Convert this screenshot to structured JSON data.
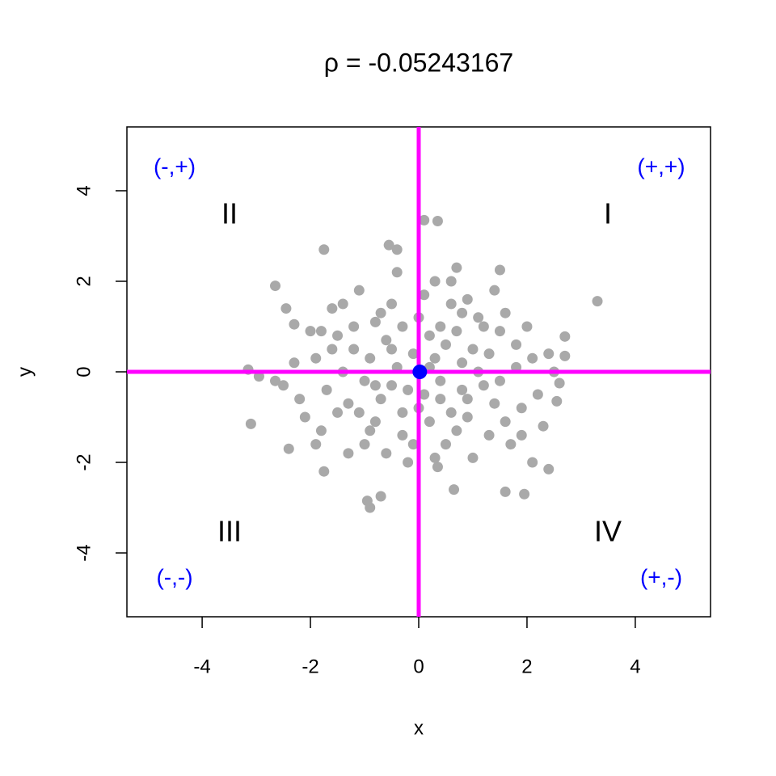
{
  "chart_data": {
    "type": "scatter",
    "title": "ρ = -0.05243167",
    "x_label": "x",
    "y_label": "y",
    "xlim": [
      -5.39,
      5.39
    ],
    "ylim": [
      -5.41,
      5.41
    ],
    "xticks": [
      -4,
      -2,
      0,
      2,
      4
    ],
    "yticks": [
      -4,
      -2,
      0,
      2,
      4
    ],
    "series": [
      {
        "color": "#a9a9a9",
        "x": [
          3.3,
          -3.1,
          -2.65,
          0.1,
          0.35,
          -1.75,
          -0.9,
          -0.95,
          -0.7,
          1.95,
          1.6,
          2.4,
          2.1,
          2.7,
          2.7,
          -3.15,
          -2.95,
          -2.65,
          -2.4,
          -1.75,
          0.65,
          0.35,
          -0.55,
          0.7,
          1.5,
          -0.4,
          -2.45,
          -2.3,
          2.55,
          2.6,
          -1.2,
          -0.8,
          -0.5,
          0.2,
          0.9,
          1.3,
          -1.5,
          0.6,
          -0.3,
          1.8,
          -1.9,
          0.4,
          -0.1,
          1.1,
          -1.0,
          0.7,
          1.6,
          -1.6,
          0.0,
          -0.6,
          2.1,
          2.2,
          -2.2,
          -2.0,
          0.3,
          -0.2,
          1.0,
          -1.3,
          1.4,
          -1.1,
          0.8,
          -0.7,
          0.5,
          -0.4,
          1.2,
          -1.4,
          0.1,
          1.9,
          -1.8,
          0.6,
          -0.9,
          1.5,
          -0.5,
          0.2,
          2.4,
          -2.3,
          0.9,
          -0.8,
          1.7,
          -1.2,
          0.4,
          -0.3,
          1.1,
          -1.7,
          0.0,
          0.8,
          -0.6,
          1.3,
          -1.0,
          0.3,
          2.0,
          -2.1,
          0.5,
          -0.4,
          1.6,
          -1.5,
          0.7,
          -0.2,
          1.0,
          -1.3,
          0.1,
          2.3,
          -1.9,
          0.9,
          -0.7,
          1.4,
          -0.9,
          0.2,
          1.8,
          -1.6,
          0.6,
          -0.1,
          1.2,
          -1.1,
          0.4,
          -0.5,
          2.5,
          -2.5,
          1.5,
          -1.4,
          0.8,
          -0.8,
          0.3,
          1.9,
          -1.8,
          -0.3
        ],
        "values": [
          1.56,
          -1.15,
          1.9,
          3.35,
          3.33,
          2.7,
          -3.0,
          -2.85,
          -2.75,
          -2.7,
          -2.65,
          -2.15,
          -2.0,
          0.78,
          0.35,
          0.05,
          -0.1,
          -0.2,
          -1.7,
          -2.2,
          -2.6,
          -2.1,
          2.8,
          2.3,
          2.25,
          2.7,
          1.4,
          1.05,
          -0.65,
          -0.25,
          0.5,
          1.1,
          -0.3,
          0.8,
          -0.6,
          0.4,
          -0.9,
          1.5,
          -1.4,
          0.1,
          0.3,
          -0.2,
          0.4,
          1.2,
          -1.6,
          -1.3,
          -1.1,
          1.4,
          -0.8,
          0.7,
          0.3,
          -0.5,
          -0.6,
          0.9,
          2.0,
          -2.0,
          -1.9,
          -1.8,
          1.8,
          1.8,
          0.2,
          -0.6,
          0.6,
          0.1,
          -0.3,
          0.0,
          -0.5,
          -0.8,
          -1.3,
          -0.9,
          0.3,
          0.9,
          1.5,
          -1.1,
          0.4,
          0.2,
          1.6,
          -1.1,
          -1.6,
          1.0,
          1.0,
          -0.9,
          0.0,
          -0.4,
          1.2,
          -0.4,
          -1.8,
          -1.4,
          -0.2,
          0.3,
          1.0,
          -1.0,
          -1.6,
          2.2,
          1.3,
          0.8,
          0.9,
          -0.4,
          0.5,
          -0.7,
          1.7,
          -1.2,
          -1.6,
          -1.0,
          1.3,
          -0.7,
          -1.3,
          0.1,
          0.6,
          0.5,
          2.0,
          -1.6,
          1.0,
          -0.9,
          -0.6,
          0.5,
          0.0,
          -0.3,
          -0.2,
          1.5,
          1.3,
          -0.3,
          -1.9,
          -1.4,
          0.9,
          1.0
        ]
      },
      {
        "color": "#0000ff",
        "x": [
          0.02
        ],
        "values": [
          0.0
        ]
      }
    ],
    "hlines": [
      0
    ],
    "vlines": [
      0
    ],
    "line_color": "#ff00ff",
    "quadrant_labels": [
      "I",
      "II",
      "III",
      "IV"
    ],
    "sign_labels": [
      "(+,+)",
      "(-,+)",
      "(-,-)",
      "(+,-)"
    ],
    "sign_color": "#0000ff"
  }
}
